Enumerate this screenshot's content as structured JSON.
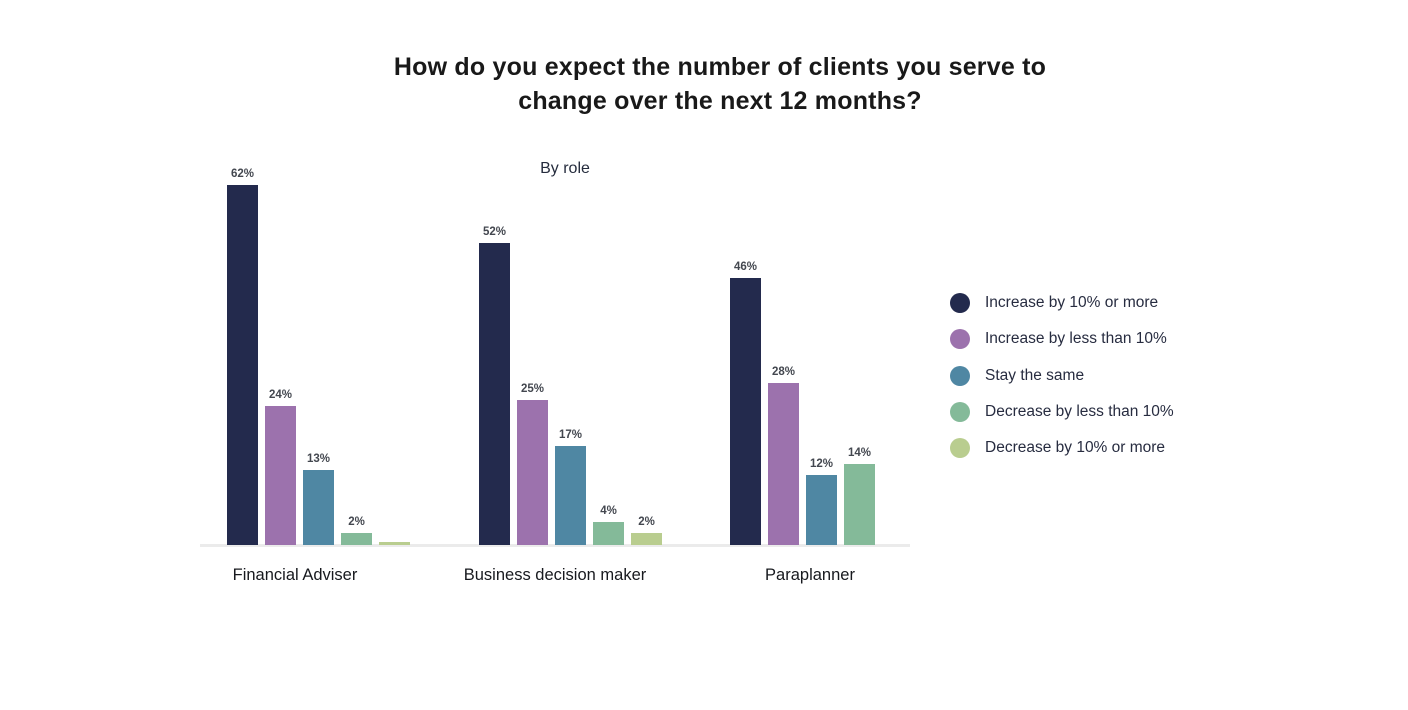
{
  "chart_data": {
    "type": "bar",
    "title": "How do you expect the number of clients you serve to change over the next 12 months?",
    "title_lines": [
      "How do you expect the number of clients you serve to",
      "change over the next 12 months?"
    ],
    "subtitle": "By role",
    "categories": [
      "Financial Adviser",
      "Business decision maker",
      "Paraplanner"
    ],
    "series": [
      {
        "name": "Increase by 10% or more",
        "color": "#232a4d",
        "values": [
          62,
          52,
          46
        ],
        "labels": [
          "62%",
          "52%",
          "46%"
        ]
      },
      {
        "name": "Increase by less than 10%",
        "color": "#9c72ad",
        "values": [
          24,
          25,
          28
        ],
        "labels": [
          "24%",
          "25%",
          "28%"
        ]
      },
      {
        "name": "Stay the same",
        "color": "#4f87a3",
        "values": [
          13,
          17,
          12
        ],
        "labels": [
          "13%",
          "17%",
          "12%"
        ]
      },
      {
        "name": "Decrease by less than 10%",
        "color": "#84ba99",
        "values": [
          2,
          4,
          14
        ],
        "labels": [
          "2%",
          "4%",
          "14%"
        ]
      },
      {
        "name": "Decrease by 10% or more",
        "color": "#b9cd8f",
        "values": [
          0.5,
          2,
          0
        ],
        "labels": [
          "",
          "2%",
          ""
        ]
      }
    ],
    "ylim": [
      0,
      65
    ],
    "y_axis_visible": false,
    "grid": false,
    "legend_position": "right",
    "data_labels_shown": true
  }
}
